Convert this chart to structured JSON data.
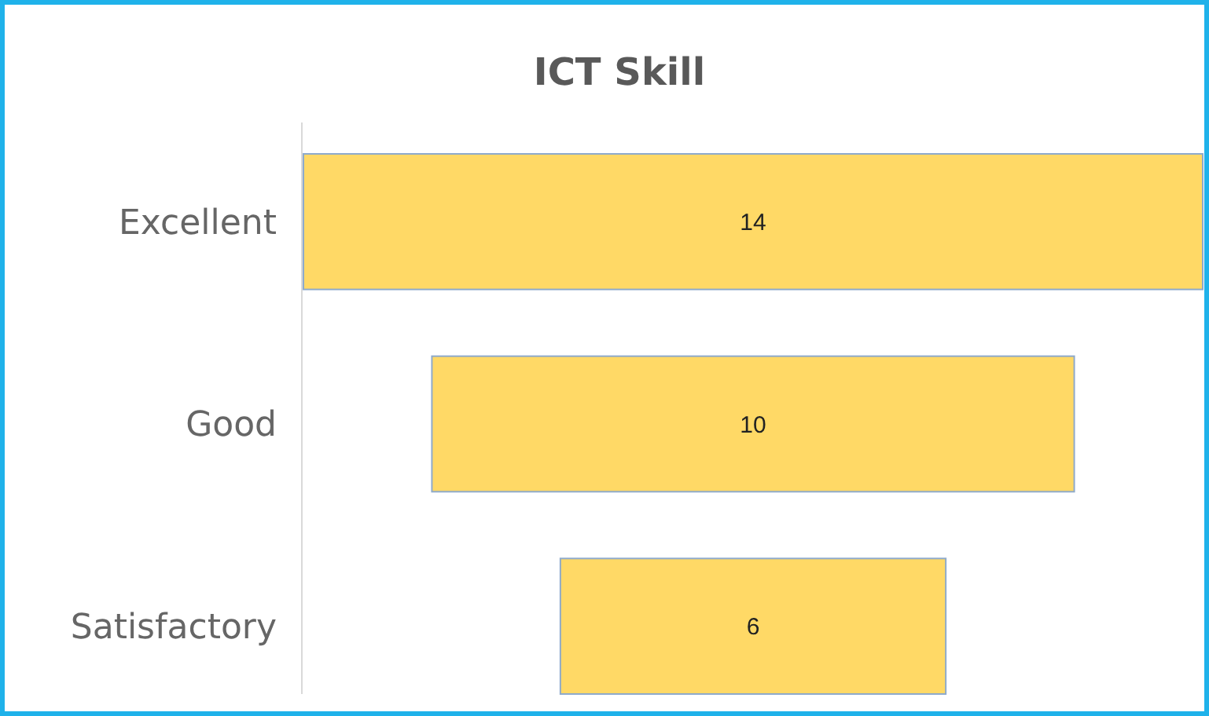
{
  "chart_data": {
    "type": "other",
    "title": "ICT Skill",
    "categories": [
      "Excellent",
      "Good",
      "Satisfactory"
    ],
    "values": [
      14,
      10,
      6
    ],
    "color": "#ffd966",
    "data_labels": true
  }
}
